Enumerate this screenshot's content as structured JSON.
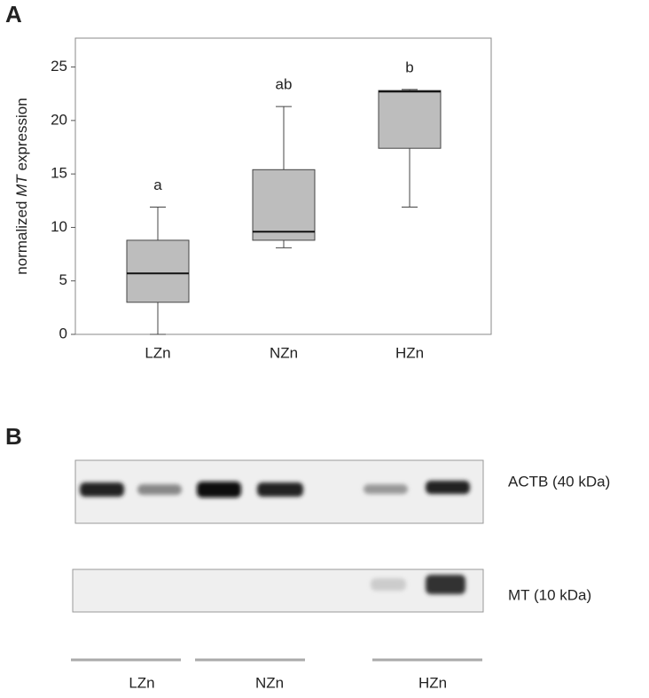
{
  "chart_data": {
    "type": "box",
    "panel_label": "A",
    "ylabel": [
      "normalized",
      "MT",
      "expression"
    ],
    "categories": [
      "LZn",
      "NZn",
      "HZn"
    ],
    "boxes": [
      {
        "min": 0,
        "q1": 3,
        "median": 5.7,
        "q3": 8.8,
        "max": 11.9
      },
      {
        "min": 8.1,
        "q1": 8.8,
        "median": 9.6,
        "q3": 15.4,
        "max": 21.3
      },
      {
        "min": 11.9,
        "q1": 17.4,
        "median": 22.7,
        "q3": 22.8,
        "max": 22.9
      }
    ],
    "letters": [
      "a",
      "ab",
      "b"
    ],
    "color": "#bdbdbd",
    "ylim": [
      0,
      27.7
    ],
    "yticks": [
      0,
      5,
      10,
      15,
      20,
      25
    ]
  },
  "blot": {
    "panel_label": "B",
    "bands": [
      "ACTB (40 kDa)",
      "MT (10 kDa)"
    ],
    "groups": [
      "LZn",
      "NZn",
      "HZn"
    ]
  }
}
